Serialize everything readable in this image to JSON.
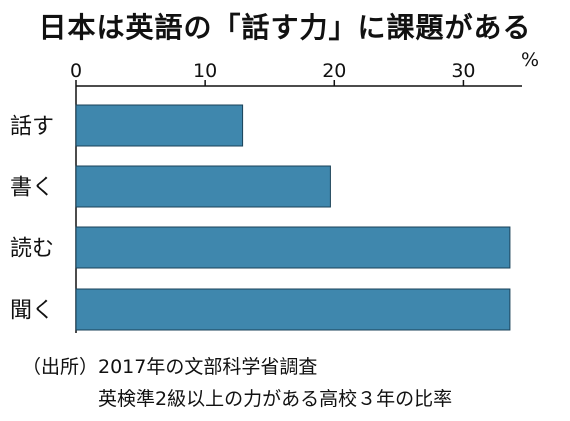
{
  "chart_data": {
    "type": "bar",
    "orientation": "horizontal",
    "title": "日本は英語の「話す力」に課題がある",
    "categories": [
      "話す",
      "書く",
      "読む",
      "聞く"
    ],
    "values": [
      12.9,
      19.7,
      33.6,
      33.6
    ],
    "xlim": [
      0,
      35
    ],
    "xticks": [
      0,
      10,
      20,
      30
    ],
    "unit": "%",
    "axis_position": "top",
    "grid": false,
    "legend": "none",
    "bar_color": "#3f87ad",
    "bar_edge_color": "#1a4258"
  },
  "source": {
    "line1": "（出所）2017年の文部科学省調査",
    "line2": "英検準2級以上の力がある高校３年の比率"
  }
}
